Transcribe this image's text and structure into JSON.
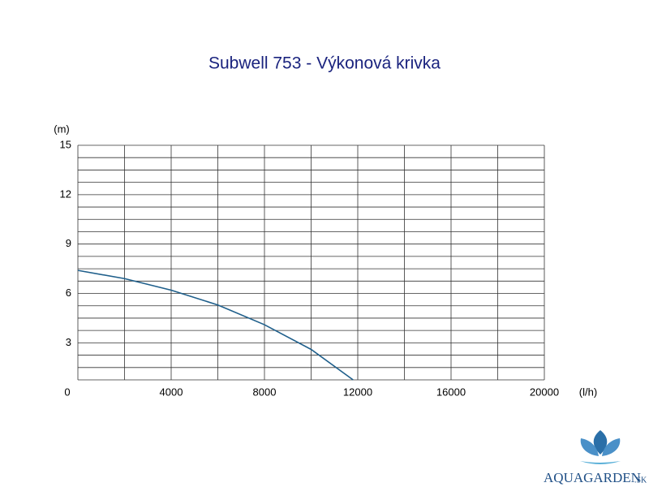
{
  "chart_data": {
    "type": "line",
    "title": "Subwell 753 - Výkonová krivka",
    "ylabel": "(m)",
    "xlabel": "(l/h)",
    "x": [
      0,
      2000,
      4000,
      6000,
      8000,
      10000,
      11800
    ],
    "series": [
      {
        "name": "Subwell 753",
        "color": "#1f5f8b",
        "values": [
          7.4,
          6.9,
          6.2,
          5.3,
          4.1,
          2.6,
          0.75
        ]
      }
    ],
    "xlim": [
      0,
      20000
    ],
    "xticks": [
      0,
      4000,
      8000,
      12000,
      16000,
      20000
    ],
    "ylim": [
      0.75,
      15
    ],
    "yticks": [
      3,
      6,
      9,
      12,
      15
    ],
    "xgrid": [
      0,
      2000,
      4000,
      6000,
      8000,
      10000,
      12000,
      14000,
      16000,
      18000,
      20000
    ],
    "ygrid": [
      0.75,
      1.5,
      2.25,
      3,
      3.75,
      4.5,
      5.25,
      6,
      6.75,
      7.5,
      8.25,
      9,
      9.75,
      10.5,
      11.25,
      12,
      12.75,
      13.5,
      14.25,
      15
    ],
    "grid": true
  },
  "logo": {
    "name": "AQUAGARDEN",
    "suffix": ".SK"
  }
}
